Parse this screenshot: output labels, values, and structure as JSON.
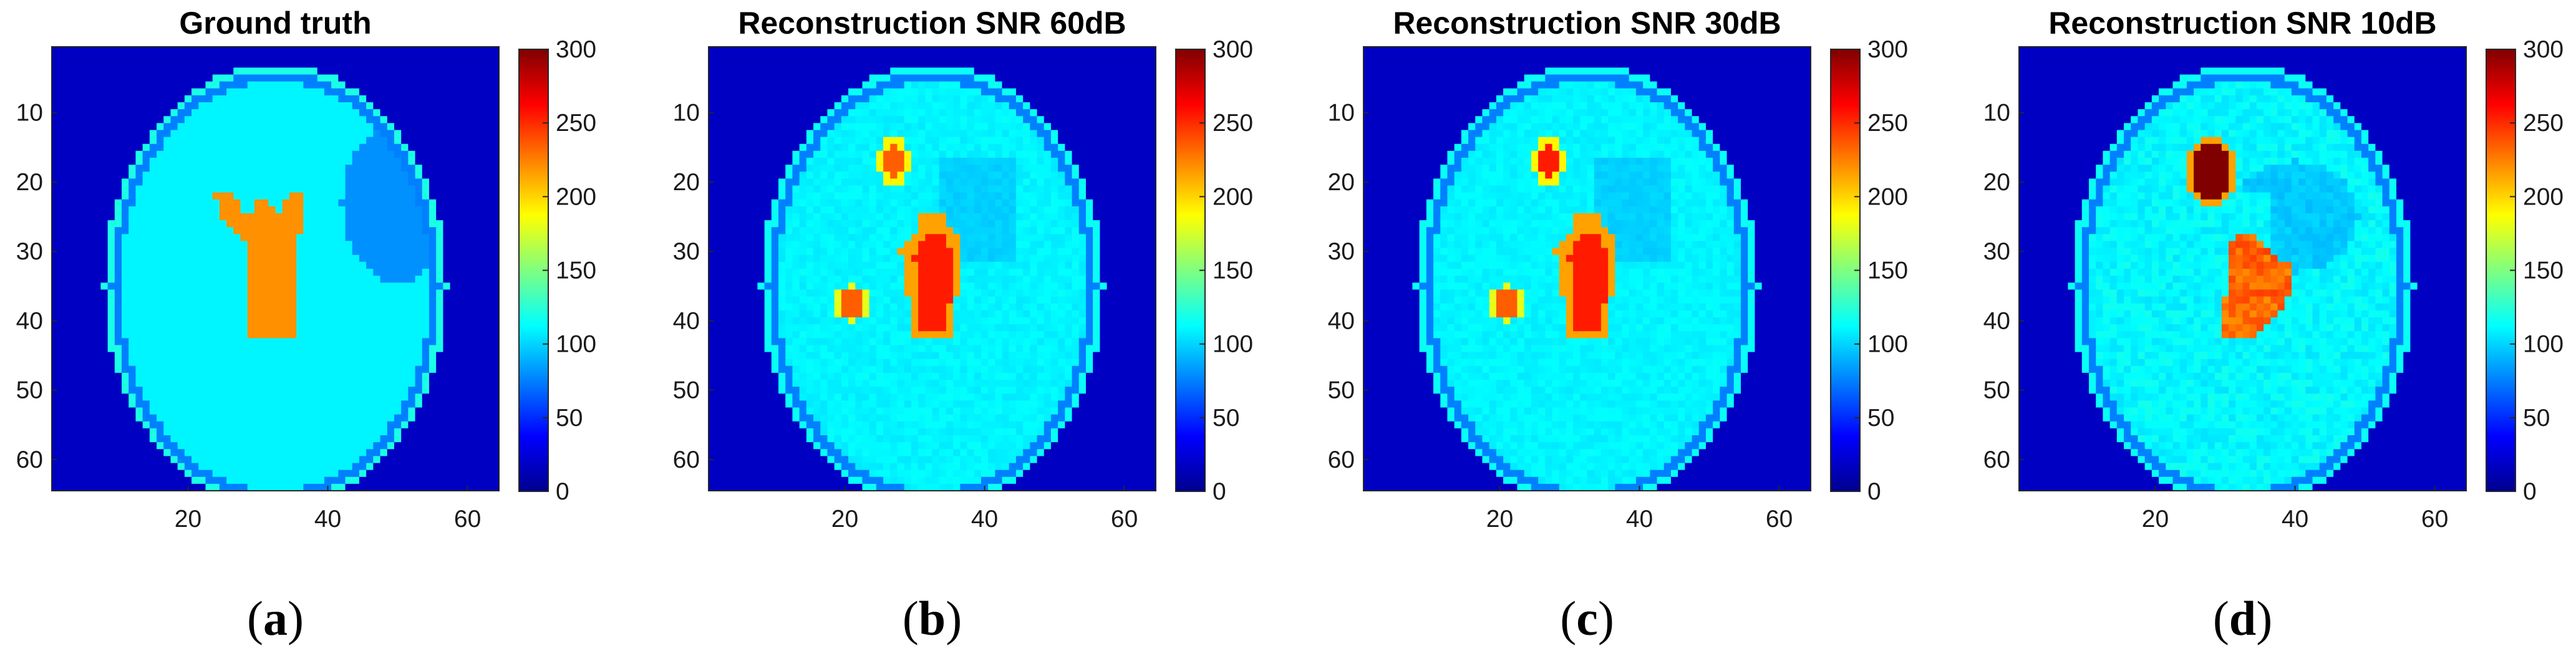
{
  "chart_data": [
    {
      "type": "heatmap",
      "title": "Ground truth",
      "panel_label": {
        "open": "(",
        "letter": "a",
        "close": ")"
      },
      "variant": "truth",
      "xticks": [
        20,
        40,
        60
      ],
      "yticks": [
        10,
        20,
        30,
        40,
        50,
        60
      ],
      "xlim": [
        0.5,
        64.5
      ],
      "ylim": [
        0.5,
        64.5
      ],
      "colorbar": {
        "ticks": [
          0,
          50,
          100,
          150,
          200,
          250,
          300
        ],
        "range": [
          0,
          300
        ],
        "colormap": "jet"
      }
    },
    {
      "type": "heatmap",
      "title": "Reconstruction SNR 60dB",
      "panel_label": {
        "open": "(",
        "letter": "b",
        "close": ")"
      },
      "variant": "snr60",
      "xticks": [
        20,
        40,
        60
      ],
      "yticks": [
        10,
        20,
        30,
        40,
        50,
        60
      ],
      "xlim": [
        0.5,
        64.5
      ],
      "ylim": [
        0.5,
        64.5
      ],
      "colorbar": {
        "ticks": [
          0,
          50,
          100,
          150,
          200,
          250,
          300
        ],
        "range": [
          0,
          300
        ],
        "colormap": "jet"
      }
    },
    {
      "type": "heatmap",
      "title": "Reconstruction SNR 30dB",
      "panel_label": {
        "open": "(",
        "letter": "c",
        "close": ")"
      },
      "variant": "snr30",
      "xticks": [
        20,
        40,
        60
      ],
      "yticks": [
        10,
        20,
        30,
        40,
        50,
        60
      ],
      "xlim": [
        0.5,
        64.5
      ],
      "ylim": [
        0.5,
        64.5
      ],
      "colorbar": {
        "ticks": [
          0,
          50,
          100,
          150,
          200,
          250,
          300
        ],
        "range": [
          0,
          300
        ],
        "colormap": "jet"
      }
    },
    {
      "type": "heatmap",
      "title": "Reconstruction SNR 10dB",
      "panel_label": {
        "open": "(",
        "letter": "d",
        "close": ")"
      },
      "variant": "snr10",
      "xticks": [
        20,
        40,
        60
      ],
      "yticks": [
        10,
        20,
        30,
        40,
        50,
        60
      ],
      "xlim": [
        0.5,
        64.5
      ],
      "ylim": [
        0.5,
        64.5
      ],
      "colorbar": {
        "ticks": [
          0,
          50,
          100,
          150,
          200,
          250,
          300
        ],
        "range": [
          0,
          300
        ],
        "colormap": "jet"
      }
    }
  ]
}
